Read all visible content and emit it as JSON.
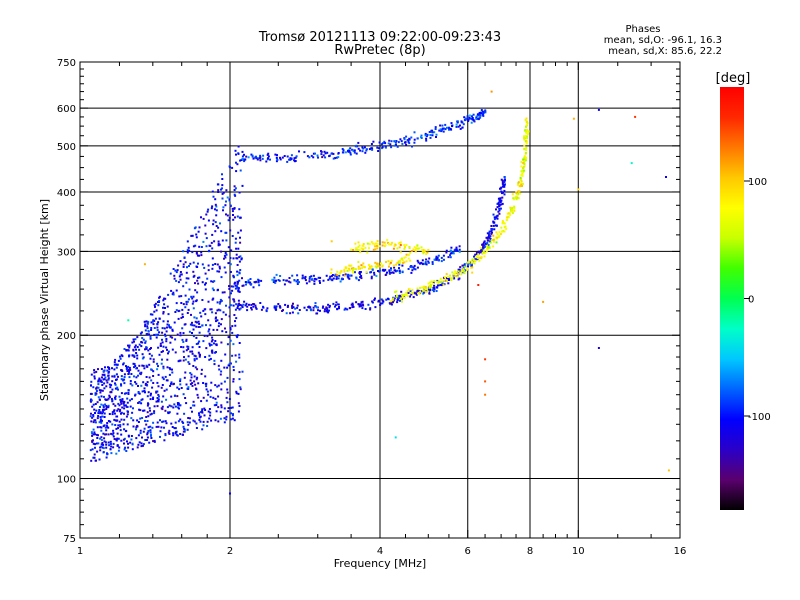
{
  "chart_data": {
    "type": "scatter",
    "title": "Tromsø 20121113 09:22:00-09:23:43",
    "subtitle": "RwPretec (8p)",
    "xlabel": "Frequency [MHz]",
    "ylabel": "Stationary phase Virtual Height [km]",
    "x_scale": "log",
    "y_scale": "log",
    "xlim": [
      1,
      16
    ],
    "ylim": [
      75,
      750
    ],
    "x_ticks": [
      1,
      2,
      4,
      6,
      8,
      10,
      16
    ],
    "y_ticks": [
      75,
      100,
      200,
      300,
      400,
      500,
      600,
      750
    ],
    "grid": true,
    "phase_info": {
      "title": "Phases",
      "line_o": "mean, sd,O: -96.1, 16.3",
      "line_x": "mean, sd,X:  85.6, 22.2"
    },
    "colorbar": {
      "label": "[deg]",
      "range": [
        -180,
        180
      ],
      "ticks": [
        100,
        0,
        -100
      ],
      "colors": [
        "#000000",
        "#5a006e",
        "#2a00c8",
        "#0000ff",
        "#0064ff",
        "#00c8ff",
        "#00ffc8",
        "#00ff50",
        "#40ff00",
        "#c8ff00",
        "#ffff00",
        "#ffc800",
        "#ff7800",
        "#ff2800",
        "#ff0000"
      ]
    },
    "traces": [
      {
        "phase": -110,
        "points": [
          [
            2.05,
            232
          ],
          [
            2.2,
            230
          ],
          [
            2.5,
            228
          ],
          [
            2.8,
            227
          ],
          [
            3.1,
            228
          ],
          [
            3.4,
            230
          ],
          [
            3.8,
            233
          ],
          [
            4.2,
            237
          ],
          [
            4.6,
            242
          ],
          [
            5.0,
            249
          ],
          [
            5.4,
            258
          ],
          [
            5.8,
            271
          ],
          [
            6.1,
            284
          ],
          [
            6.4,
            302
          ],
          [
            6.6,
            320
          ],
          [
            6.8,
            345
          ],
          [
            6.95,
            375
          ],
          [
            7.05,
            405
          ],
          [
            7.1,
            430
          ]
        ]
      },
      {
        "phase": -100,
        "points": [
          [
            2.0,
            255
          ],
          [
            2.2,
            258
          ],
          [
            2.5,
            262
          ],
          [
            2.8,
            263
          ],
          [
            3.1,
            263
          ],
          [
            3.4,
            265
          ],
          [
            3.8,
            268
          ],
          [
            4.2,
            272
          ],
          [
            4.6,
            278
          ],
          [
            5.0,
            285
          ],
          [
            5.4,
            293
          ],
          [
            5.8,
            305
          ]
        ]
      },
      {
        "phase": -95,
        "points": [
          [
            2.1,
            470
          ],
          [
            2.3,
            475
          ],
          [
            2.6,
            472
          ],
          [
            3.0,
            476
          ],
          [
            3.3,
            482
          ],
          [
            3.6,
            490
          ],
          [
            4.0,
            500
          ],
          [
            4.4,
            510
          ],
          [
            4.8,
            522
          ],
          [
            5.2,
            536
          ],
          [
            5.6,
            550
          ],
          [
            6.0,
            565
          ],
          [
            6.3,
            580
          ],
          [
            6.5,
            588
          ]
        ]
      },
      {
        "phase": 85,
        "points": [
          [
            3.5,
            305
          ],
          [
            3.8,
            308
          ],
          [
            4.2,
            310
          ],
          [
            4.6,
            306
          ],
          [
            5.0,
            297
          ]
        ]
      },
      {
        "phase": 70,
        "points": [
          [
            4.2,
            240
          ],
          [
            4.6,
            245
          ],
          [
            5.0,
            252
          ],
          [
            5.4,
            262
          ],
          [
            5.8,
            272
          ],
          [
            6.2,
            286
          ],
          [
            6.6,
            305
          ],
          [
            7.0,
            330
          ],
          [
            7.3,
            360
          ],
          [
            7.55,
            395
          ],
          [
            7.7,
            430
          ],
          [
            7.8,
            470
          ],
          [
            7.85,
            520
          ],
          [
            7.9,
            565
          ]
        ]
      },
      {
        "phase": 85,
        "points": [
          [
            3.2,
            272
          ],
          [
            3.5,
            276
          ],
          [
            3.8,
            278
          ],
          [
            4.2,
            283
          ],
          [
            4.6,
            290
          ]
        ]
      }
    ],
    "spread_region": {
      "phase": -105,
      "x_range": [
        1.05,
        2.12
      ],
      "y_range": [
        108,
        540
      ]
    },
    "scattered_points": [
      {
        "x": 11.0,
        "y": 188,
        "phase": -120
      },
      {
        "x": 6.5,
        "y": 178,
        "phase": 150
      },
      {
        "x": 6.5,
        "y": 160,
        "phase": 140
      },
      {
        "x": 6.5,
        "y": 150,
        "phase": 130
      },
      {
        "x": 8.5,
        "y": 235,
        "phase": 115
      },
      {
        "x": 9.8,
        "y": 570,
        "phase": 110
      },
      {
        "x": 13.0,
        "y": 575,
        "phase": 150
      },
      {
        "x": 12.8,
        "y": 460,
        "phase": -30
      },
      {
        "x": 15.0,
        "y": 430,
        "phase": -110
      },
      {
        "x": 15.2,
        "y": 104,
        "phase": 105
      },
      {
        "x": 10.0,
        "y": 405,
        "phase": 95
      },
      {
        "x": 1.35,
        "y": 282,
        "phase": 110
      },
      {
        "x": 1.25,
        "y": 215,
        "phase": -20
      },
      {
        "x": 4.3,
        "y": 122,
        "phase": -40
      },
      {
        "x": 2.0,
        "y": 93,
        "phase": -110
      },
      {
        "x": 6.3,
        "y": 255,
        "phase": 160
      },
      {
        "x": 3.2,
        "y": 315,
        "phase": 100
      },
      {
        "x": 6.7,
        "y": 650,
        "phase": 120
      },
      {
        "x": 11.0,
        "y": 595,
        "phase": -110
      }
    ]
  }
}
